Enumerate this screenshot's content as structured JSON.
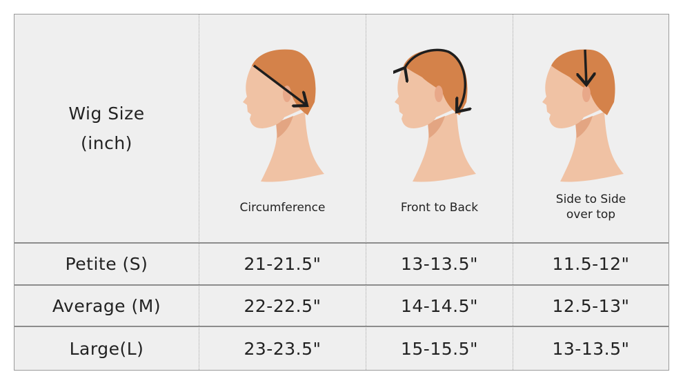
{
  "header": {
    "size_label_line1": "Wig Size",
    "size_label_line2": "(inch)",
    "columns": [
      {
        "label": "Circumference",
        "icon": "head-circumference-icon"
      },
      {
        "label": "Front to Back",
        "icon": "head-front-to-back-icon"
      },
      {
        "label_line1": "Side to Side",
        "label_line2": "over top",
        "icon": "head-side-to-side-icon"
      }
    ]
  },
  "rows": [
    {
      "size": "Petite (S)",
      "values": [
        "21-21.5\"",
        "13-13.5\"",
        "11.5-12\""
      ]
    },
    {
      "size": "Average (M)",
      "values": [
        "22-22.5\"",
        "14-14.5\"",
        "12.5-13\""
      ]
    },
    {
      "size": "Large(L)",
      "values": [
        "23-23.5\"",
        "15-15.5\"",
        "13-13.5\""
      ]
    }
  ],
  "colors": {
    "background": "#efefef",
    "hair": "#d4824a",
    "skin": "#f0c2a4",
    "shadow": "#e3a582",
    "arrow": "#1e1e1e"
  }
}
